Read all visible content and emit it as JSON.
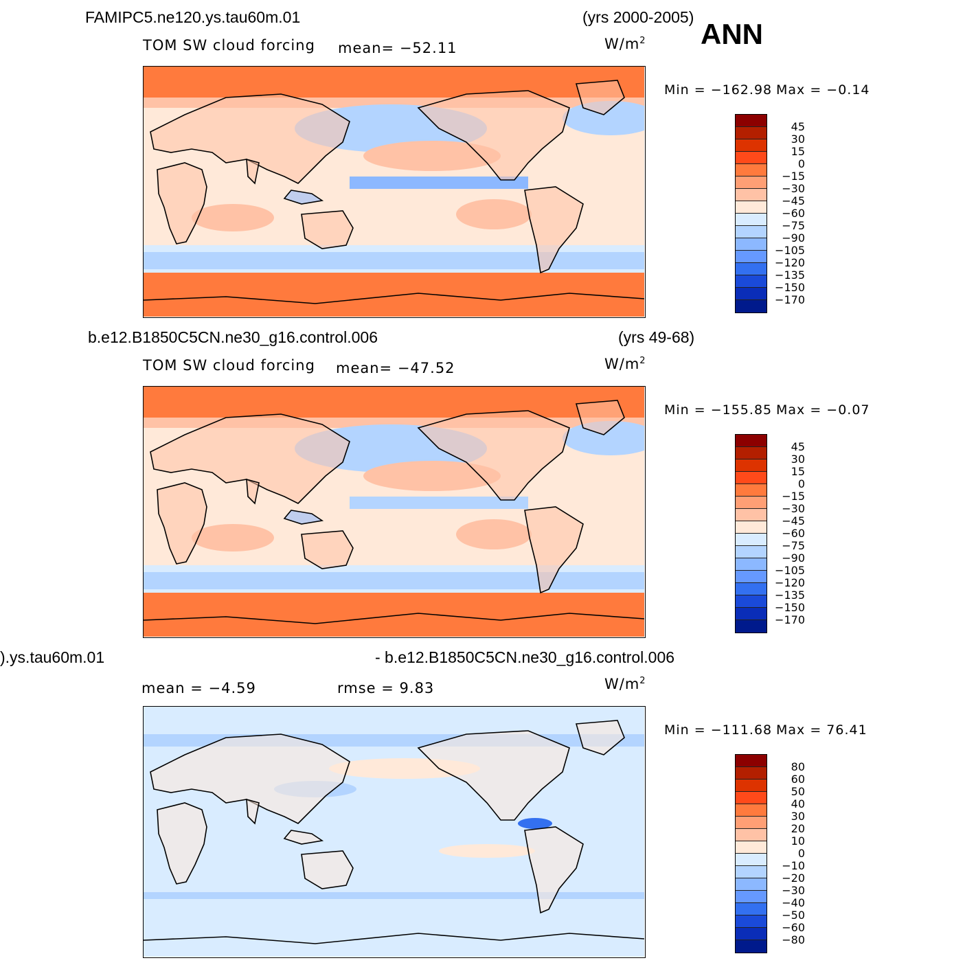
{
  "panels": [
    {
      "case_left": "FAMIPC5.ne120.ys.tau60m.01",
      "case_right": "(yrs 2000-2005)",
      "var_label": "TOM SW cloud forcing",
      "stat1": "mean=  −52.11",
      "stat2": "",
      "units": "W/m",
      "units_sup": "2",
      "min_text": "Min  =  −162.98",
      "max_text": "Max  =   −0.14",
      "theme": "warm",
      "colorbar": {
        "labels": [
          "45",
          "30",
          "15",
          "0",
          "−15",
          "−30",
          "−45",
          "−60",
          "−75",
          "−90",
          "−105",
          "−120",
          "−135",
          "−150",
          "−170"
        ],
        "colors": [
          "#8c0000",
          "#b31f00",
          "#dd3300",
          "#ff4a1a",
          "#ff7a3d",
          "#ff9f75",
          "#ffc2a6",
          "#ffe9d9",
          "#d9ecff",
          "#b3d4ff",
          "#8cb8ff",
          "#6699ff",
          "#3370f0",
          "#1a4ad9",
          "#0a2db8",
          "#001a8c"
        ]
      }
    },
    {
      "case_left": "b.e12.B1850C5CN.ne30_g16.control.006",
      "case_right": "(yrs 49-68)",
      "var_label": "TOM SW cloud forcing",
      "stat1": "mean=  −47.52",
      "stat2": "",
      "units": "W/m",
      "units_sup": "2",
      "min_text": "Min  =  −155.85",
      "max_text": "Max  =   −0.07",
      "theme": "warm",
      "colorbar": {
        "labels": [
          "45",
          "30",
          "15",
          "0",
          "−15",
          "−30",
          "−45",
          "−60",
          "−75",
          "−90",
          "−105",
          "−120",
          "−135",
          "−150",
          "−170"
        ],
        "colors": [
          "#8c0000",
          "#b31f00",
          "#dd3300",
          "#ff4a1a",
          "#ff7a3d",
          "#ff9f75",
          "#ffc2a6",
          "#ffe9d9",
          "#d9ecff",
          "#b3d4ff",
          "#8cb8ff",
          "#6699ff",
          "#3370f0",
          "#1a4ad9",
          "#0a2db8",
          "#001a8c"
        ]
      }
    },
    {
      "case_left": ").ys.tau60m.01",
      "case_right": "- b.e12.B1850C5CN.ne30_g16.control.006",
      "var_label": "",
      "stat1": "mean  =   −4.59",
      "stat2": "rmse  =     9.83",
      "units": "W/m",
      "units_sup": "2",
      "min_text": "Min  =  −111.68",
      "max_text": "Max  =   76.41",
      "theme": "diff",
      "colorbar": {
        "labels": [
          "80",
          "60",
          "50",
          "40",
          "30",
          "20",
          "10",
          "0",
          "−10",
          "−20",
          "−30",
          "−40",
          "−50",
          "−60",
          "−80"
        ],
        "colors": [
          "#8c0000",
          "#b31f00",
          "#dd3300",
          "#ff4a1a",
          "#ff7a3d",
          "#ff9f75",
          "#ffc2a6",
          "#ffe9d9",
          "#d9ecff",
          "#b3d4ff",
          "#8cb8ff",
          "#6699ff",
          "#3370f0",
          "#1a4ad9",
          "#0a2db8",
          "#001a8c"
        ]
      }
    }
  ],
  "season": "ANN",
  "map_colors": {
    "warm_bg": "#ff7a3d",
    "warm_light": "#ffc2a6",
    "warm_pale": "#ffe9d9",
    "blue_pale": "#d9ecff",
    "blue_light": "#b3d4ff",
    "blue_mid": "#8cb8ff",
    "blue_deep": "#3370f0",
    "diff_bg": "#d9ecff"
  }
}
